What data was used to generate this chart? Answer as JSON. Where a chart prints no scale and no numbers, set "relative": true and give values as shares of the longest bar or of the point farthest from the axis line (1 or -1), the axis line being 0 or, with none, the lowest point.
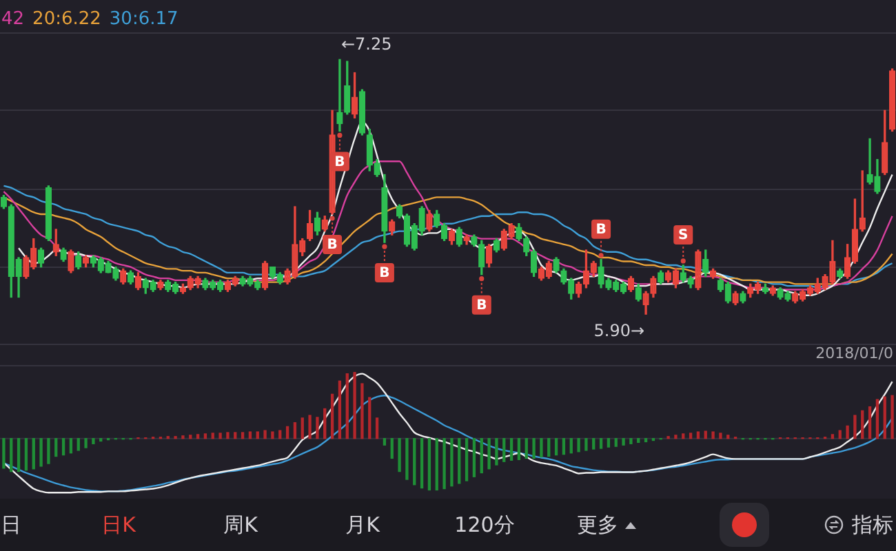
{
  "chart_data": [
    {
      "type": "candlestick",
      "categories": [
        null,
        null,
        null,
        null,
        null,
        null,
        null,
        null,
        null,
        null,
        null,
        null,
        null,
        null,
        null,
        null,
        null,
        null,
        null,
        null,
        null,
        null,
        null,
        null,
        null,
        null,
        null,
        null,
        null,
        null,
        null,
        null,
        null,
        null,
        null,
        null,
        null,
        null,
        null,
        null,
        null,
        null,
        null,
        null,
        null,
        null,
        null,
        null,
        null,
        null,
        null,
        null,
        null,
        null,
        null,
        null,
        null,
        null,
        null,
        null,
        null,
        null,
        null,
        null,
        null,
        null,
        null,
        null,
        null,
        null,
        null,
        null,
        null,
        null,
        null,
        null,
        null,
        null,
        null,
        null,
        null,
        null,
        null,
        null,
        null,
        null,
        null,
        null,
        null,
        null,
        null,
        null,
        null,
        null,
        null,
        null,
        null,
        null,
        null,
        null,
        null,
        null,
        null,
        null,
        null,
        null,
        null,
        null,
        null,
        null,
        null,
        null,
        null,
        null,
        null,
        null,
        null,
        null,
        null,
        null
      ],
      "ohlc": [
        [
          6.52,
          6.53,
          6.46,
          6.47
        ],
        [
          6.47,
          6.48,
          5.99,
          6.1
        ],
        [
          6.19,
          6.2,
          5.99,
          6.1
        ],
        [
          6.1,
          6.21,
          6.09,
          6.2
        ],
        [
          6.15,
          6.3,
          6.14,
          6.25
        ],
        [
          6.24,
          6.25,
          6.15,
          6.17
        ],
        [
          6.57,
          6.58,
          6.29,
          6.3
        ],
        [
          6.23,
          6.35,
          6.21,
          6.27
        ],
        [
          6.24,
          6.25,
          6.18,
          6.19
        ],
        [
          6.13,
          6.24,
          6.12,
          6.23
        ],
        [
          6.21,
          6.23,
          6.14,
          6.15
        ],
        [
          6.17,
          6.21,
          6.15,
          6.2
        ],
        [
          6.2,
          6.21,
          6.15,
          6.17
        ],
        [
          6.19,
          6.2,
          6.12,
          6.13
        ],
        [
          6.17,
          6.18,
          6.12,
          6.12
        ],
        [
          6.14,
          6.15,
          6.08,
          6.09
        ],
        [
          6.07,
          6.14,
          6.06,
          6.13
        ],
        [
          6.12,
          6.13,
          6.06,
          6.07
        ],
        [
          6.04,
          6.12,
          6.03,
          6.1
        ],
        [
          6.08,
          6.09,
          6.01,
          6.04
        ],
        [
          6.07,
          6.08,
          6.02,
          6.03
        ],
        [
          6.04,
          6.08,
          6.03,
          6.07
        ],
        [
          6.07,
          6.08,
          6.02,
          6.03
        ],
        [
          6.06,
          6.07,
          6.01,
          6.02
        ],
        [
          6.02,
          6.06,
          6.01,
          6.04
        ],
        [
          6.04,
          6.1,
          6.03,
          6.09
        ],
        [
          6.06,
          6.1,
          6.04,
          6.09
        ],
        [
          6.08,
          6.09,
          6.03,
          6.04
        ],
        [
          6.07,
          6.08,
          6.03,
          6.04
        ],
        [
          6.07,
          6.08,
          6.02,
          6.03
        ],
        [
          6.03,
          6.08,
          6.02,
          6.07
        ],
        [
          6.06,
          6.1,
          6.05,
          6.09
        ],
        [
          6.09,
          6.1,
          6.05,
          6.06
        ],
        [
          6.09,
          6.1,
          6.05,
          6.06
        ],
        [
          6.07,
          6.08,
          6.03,
          6.04
        ],
        [
          6.04,
          6.18,
          6.03,
          6.17
        ],
        [
          6.15,
          6.15,
          6.09,
          6.1
        ],
        [
          6.11,
          6.12,
          6.06,
          6.07
        ],
        [
          6.07,
          6.14,
          6.06,
          6.13
        ],
        [
          6.1,
          6.47,
          6.09,
          6.27
        ],
        [
          6.23,
          6.3,
          6.21,
          6.29
        ],
        [
          6.3,
          6.45,
          6.29,
          6.38
        ],
        [
          6.41,
          6.44,
          6.32,
          6.34
        ],
        [
          6.35,
          6.42,
          6.34,
          6.4
        ],
        [
          6.44,
          6.98,
          6.43,
          6.85
        ],
        [
          6.97,
          7.25,
          6.87,
          6.91
        ],
        [
          7.11,
          7.24,
          6.96,
          6.97
        ],
        [
          6.96,
          7.18,
          6.94,
          7.05
        ],
        [
          7.08,
          7.09,
          6.85,
          6.86
        ],
        [
          6.85,
          6.88,
          6.66,
          6.69
        ],
        [
          6.7,
          6.72,
          6.63,
          6.64
        ],
        [
          6.57,
          6.64,
          6.28,
          6.34
        ],
        [
          6.34,
          6.4,
          6.32,
          6.39
        ],
        [
          6.47,
          6.48,
          6.41,
          6.42
        ],
        [
          6.42,
          6.43,
          6.26,
          6.27
        ],
        [
          6.37,
          6.38,
          6.24,
          6.25
        ],
        [
          6.46,
          6.47,
          6.32,
          6.34
        ],
        [
          6.35,
          6.45,
          6.34,
          6.43
        ],
        [
          6.43,
          6.45,
          6.36,
          6.37
        ],
        [
          6.37,
          6.38,
          6.29,
          6.3
        ],
        [
          6.29,
          6.35,
          6.27,
          6.34
        ],
        [
          6.35,
          6.36,
          6.26,
          6.27
        ],
        [
          6.29,
          6.32,
          6.27,
          6.31
        ],
        [
          6.31,
          6.32,
          6.26,
          6.27
        ],
        [
          6.27,
          6.29,
          6.11,
          6.15
        ],
        [
          6.17,
          6.27,
          6.15,
          6.26
        ],
        [
          6.29,
          6.3,
          6.23,
          6.24
        ],
        [
          6.25,
          6.35,
          6.24,
          6.34
        ],
        [
          6.31,
          6.38,
          6.3,
          6.37
        ],
        [
          6.36,
          6.38,
          6.29,
          6.3
        ],
        [
          6.3,
          6.31,
          6.21,
          6.23
        ],
        [
          6.23,
          6.24,
          6.1,
          6.12
        ],
        [
          6.09,
          6.15,
          6.08,
          6.14
        ],
        [
          6.1,
          6.18,
          6.09,
          6.17
        ],
        [
          6.19,
          6.2,
          6.12,
          6.13
        ],
        [
          6.13,
          6.14,
          6.06,
          6.07
        ],
        [
          6.08,
          6.09,
          5.98,
          6.01
        ],
        [
          6.01,
          6.07,
          5.99,
          6.06
        ],
        [
          6.06,
          6.24,
          6.04,
          6.13
        ],
        [
          6.12,
          6.18,
          6.1,
          6.17
        ],
        [
          6.15,
          6.19,
          6.04,
          6.06
        ],
        [
          6.08,
          6.09,
          6.03,
          6.04
        ],
        [
          6.07,
          6.08,
          6.02,
          6.03
        ],
        [
          6.06,
          6.07,
          6.01,
          6.02
        ],
        [
          6.03,
          6.1,
          6.02,
          6.09
        ],
        [
          6.04,
          6.06,
          5.97,
          5.98
        ],
        [
          5.95,
          6.02,
          5.9,
          6.01
        ],
        [
          6.01,
          6.1,
          5.99,
          6.09
        ],
        [
          6.12,
          6.13,
          6.06,
          6.07
        ],
        [
          6.08,
          6.13,
          6.07,
          6.12
        ],
        [
          6.06,
          6.14,
          6.04,
          6.13
        ],
        [
          6.12,
          6.16,
          6.07,
          6.08
        ],
        [
          6.09,
          6.1,
          6.04,
          6.06
        ],
        [
          6.04,
          6.24,
          6.03,
          6.23
        ],
        [
          6.19,
          6.24,
          6.1,
          6.12
        ],
        [
          6.1,
          6.14,
          6.09,
          6.13
        ],
        [
          6.08,
          6.09,
          6.02,
          6.03
        ],
        [
          6.06,
          6.07,
          5.96,
          5.97
        ],
        [
          5.96,
          6.02,
          5.95,
          6.01
        ],
        [
          6.01,
          6.02,
          5.96,
          5.97
        ],
        [
          6.01,
          6.06,
          5.99,
          6.04
        ],
        [
          6.03,
          6.07,
          6.01,
          6.06
        ],
        [
          6.04,
          6.06,
          6.01,
          6.02
        ],
        [
          6.01,
          6.05,
          6.0,
          6.04
        ],
        [
          6.03,
          6.04,
          5.98,
          5.99
        ],
        [
          6.01,
          6.02,
          5.97,
          5.98
        ],
        [
          5.97,
          6.02,
          5.96,
          6.01
        ],
        [
          5.98,
          6.03,
          5.97,
          6.02
        ],
        [
          6.01,
          6.05,
          6.0,
          6.04
        ],
        [
          6.02,
          6.09,
          6.01,
          6.06
        ],
        [
          6.04,
          6.11,
          6.03,
          6.1
        ],
        [
          6.07,
          6.29,
          6.06,
          6.18
        ],
        [
          6.13,
          6.14,
          6.09,
          6.1
        ],
        [
          6.1,
          6.27,
          6.09,
          6.2
        ],
        [
          6.18,
          6.51,
          6.17,
          6.35
        ],
        [
          6.35,
          6.66,
          6.34,
          6.41
        ],
        [
          6.64,
          6.83,
          6.59,
          6.6
        ],
        [
          6.63,
          6.72,
          6.54,
          6.55
        ],
        [
          6.65,
          6.98,
          6.64,
          6.81
        ],
        [
          6.88,
          7.2,
          6.87,
          7.19
        ]
      ],
      "colors": [
        "#2fbe52",
        "#2fbe52",
        "#2fbe52",
        "#e8463d",
        "#e8463d",
        "#2fbe52",
        "#2fbe52",
        "#e8463d",
        "#2fbe52",
        "#e8463d",
        "#2fbe52",
        "#e8463d",
        "#2fbe52",
        "#2fbe52",
        "#2fbe52",
        "#2fbe52",
        "#e8463d",
        "#2fbe52",
        "#e8463d",
        "#2fbe52",
        "#2fbe52",
        "#e8463d",
        "#2fbe52",
        "#2fbe52",
        "#e8463d",
        "#e8463d",
        "#e8463d",
        "#2fbe52",
        "#2fbe52",
        "#2fbe52",
        "#e8463d",
        "#e8463d",
        "#2fbe52",
        "#2fbe52",
        "#2fbe52",
        "#e8463d",
        "#2fbe52",
        "#2fbe52",
        "#e8463d",
        "#e8463d",
        "#e8463d",
        "#e8463d",
        "#2fbe52",
        "#e8463d",
        "#e8463d",
        "#2fbe52",
        "#2fbe52",
        "#e8463d",
        "#2fbe52",
        "#2fbe52",
        "#2fbe52",
        "#2fbe52",
        "#e8463d",
        "#2fbe52",
        "#2fbe52",
        "#2fbe52",
        "#2fbe52",
        "#e8463d",
        "#2fbe52",
        "#2fbe52",
        "#e8463d",
        "#2fbe52",
        "#e8463d",
        "#2fbe52",
        "#2fbe52",
        "#e8463d",
        "#2fbe52",
        "#e8463d",
        "#e8463d",
        "#2fbe52",
        "#2fbe52",
        "#2fbe52",
        "#e8463d",
        "#e8463d",
        "#2fbe52",
        "#2fbe52",
        "#2fbe52",
        "#e8463d",
        "#e8463d",
        "#e8463d",
        "#2fbe52",
        "#2fbe52",
        "#2fbe52",
        "#2fbe52",
        "#e8463d",
        "#2fbe52",
        "#e8463d",
        "#e8463d",
        "#2fbe52",
        "#e8463d",
        "#e8463d",
        "#2fbe52",
        "#2fbe52",
        "#e8463d",
        "#2fbe52",
        "#e8463d",
        "#2fbe52",
        "#2fbe52",
        "#e8463d",
        "#2fbe52",
        "#e8463d",
        "#e8463d",
        "#2fbe52",
        "#e8463d",
        "#2fbe52",
        "#2fbe52",
        "#e8463d",
        "#e8463d",
        "#e8463d",
        "#e8463d",
        "#e8463d",
        "#e8463d",
        "#2fbe52",
        "#e8463d",
        "#e8463d",
        "#e8463d",
        "#2fbe52",
        "#2fbe52",
        "#e8463d",
        "#e8463d"
      ],
      "series": [
        {
          "type": "line",
          "color": "#eeeeee",
          "values": [
            null,
            null,
            6.25,
            6.2,
            6.17,
            6.18,
            6.21,
            6.24,
            6.23,
            6.22,
            6.22,
            6.21,
            6.2,
            6.18,
            6.16,
            6.14,
            6.12,
            6.11,
            6.09,
            6.08,
            6.07,
            6.06,
            6.05,
            6.05,
            6.04,
            6.05,
            6.06,
            6.06,
            6.06,
            6.06,
            6.06,
            6.06,
            6.07,
            6.08,
            6.09,
            6.09,
            6.09,
            6.1,
            6.1,
            6.13,
            6.17,
            6.21,
            6.25,
            6.34,
            6.43,
            6.57,
            6.7,
            6.83,
            6.92,
            6.87,
            6.74,
            6.6,
            6.51,
            6.45,
            6.38,
            6.34,
            6.32,
            6.33,
            6.33,
            6.35,
            6.35,
            6.32,
            6.3,
            6.27,
            6.25,
            6.26,
            6.28,
            6.31,
            6.33,
            6.34,
            6.31,
            6.24,
            6.16,
            6.13,
            6.12,
            6.09,
            6.08,
            6.09,
            6.1,
            6.1,
            6.11,
            6.1,
            6.09,
            6.07,
            6.05,
            6.05,
            6.05,
            6.06,
            6.06,
            6.06,
            6.06,
            6.07,
            6.08,
            6.1,
            6.12,
            6.12,
            6.11,
            6.09,
            6.07,
            6.05,
            6.03,
            6.03,
            6.03,
            6.03,
            6.03,
            6.02,
            6.01,
            6.0,
            6.0,
            6.01,
            6.03,
            6.05,
            6.09,
            6.13,
            6.2,
            6.28,
            6.36,
            6.46,
            6.55,
            6.64
          ]
        },
        {
          "type": "line",
          "name": "42",
          "color": "#d9409f",
          "values": [
            6.55,
            6.51,
            6.46,
            6.41,
            6.36,
            6.32,
            6.3,
            6.26,
            6.23,
            6.22,
            6.21,
            6.21,
            6.21,
            6.2,
            6.19,
            6.17,
            6.16,
            6.15,
            6.13,
            6.11,
            6.1,
            6.09,
            6.09,
            6.08,
            6.08,
            6.08,
            6.08,
            6.07,
            6.07,
            6.07,
            6.07,
            6.08,
            6.08,
            6.08,
            6.08,
            6.08,
            6.08,
            6.09,
            6.1,
            6.12,
            6.15,
            6.18,
            6.2,
            6.26,
            6.31,
            6.42,
            6.53,
            6.6,
            6.66,
            6.69,
            6.71,
            6.71,
            6.71,
            6.71,
            6.65,
            6.58,
            6.52,
            6.44,
            6.4,
            6.37,
            6.35,
            6.34,
            6.32,
            6.31,
            6.3,
            6.3,
            6.3,
            6.3,
            6.3,
            6.28,
            6.25,
            6.23,
            6.21,
            6.19,
            6.18,
            6.16,
            6.15,
            6.13,
            6.12,
            6.11,
            6.11,
            6.1,
            6.09,
            6.08,
            6.07,
            6.06,
            6.06,
            6.06,
            6.06,
            6.06,
            6.07,
            6.08,
            6.09,
            6.1,
            6.1,
            6.1,
            6.09,
            6.07,
            6.06,
            6.05,
            6.04,
            6.04,
            6.04,
            6.03,
            6.03,
            6.03,
            6.03,
            6.03,
            6.03,
            6.03,
            6.04,
            6.05,
            6.06,
            6.07,
            6.1,
            6.14,
            6.18,
            6.24,
            6.33,
            6.42
          ]
        },
        {
          "type": "line",
          "name": "20:6.22",
          "color": "#e8a23a",
          "values": [
            6.52,
            6.5,
            6.48,
            6.46,
            6.44,
            6.43,
            6.43,
            6.42,
            6.41,
            6.4,
            6.38,
            6.35,
            6.33,
            6.31,
            6.28,
            6.25,
            6.23,
            6.21,
            6.19,
            6.17,
            6.16,
            6.15,
            6.14,
            6.14,
            6.13,
            6.13,
            6.12,
            6.12,
            6.11,
            6.1,
            6.09,
            6.09,
            6.08,
            6.08,
            6.07,
            6.07,
            6.07,
            6.07,
            6.08,
            6.1,
            6.12,
            6.13,
            6.15,
            6.18,
            6.22,
            6.26,
            6.3,
            6.34,
            6.37,
            6.4,
            6.43,
            6.44,
            6.46,
            6.47,
            6.48,
            6.49,
            6.5,
            6.51,
            6.52,
            6.52,
            6.52,
            6.52,
            6.51,
            6.5,
            6.48,
            6.45,
            6.42,
            6.39,
            6.37,
            6.35,
            6.33,
            6.32,
            6.3,
            6.29,
            6.28,
            6.27,
            6.26,
            6.24,
            6.23,
            6.22,
            6.2,
            6.2,
            6.19,
            6.18,
            6.18,
            6.17,
            6.16,
            6.16,
            6.15,
            6.15,
            6.14,
            6.14,
            6.13,
            6.12,
            6.12,
            6.11,
            6.1,
            6.09,
            6.09,
            6.08,
            6.08,
            6.08,
            6.07,
            6.07,
            6.07,
            6.07,
            6.06,
            6.06,
            6.06,
            6.06,
            6.06,
            6.06,
            6.06,
            6.07,
            6.07,
            6.08,
            6.1,
            6.13,
            6.17,
            6.22
          ]
        },
        {
          "type": "line",
          "name": "30:6.17",
          "color": "#3fa0d8",
          "values": [
            6.58,
            6.57,
            6.55,
            6.53,
            6.52,
            6.5,
            6.49,
            6.48,
            6.46,
            6.45,
            6.44,
            6.43,
            6.41,
            6.4,
            6.38,
            6.37,
            6.36,
            6.35,
            6.34,
            6.32,
            6.31,
            6.28,
            6.26,
            6.25,
            6.23,
            6.22,
            6.2,
            6.18,
            6.16,
            6.14,
            6.12,
            6.12,
            6.12,
            6.11,
            6.11,
            6.11,
            6.11,
            6.11,
            6.1,
            6.1,
            6.1,
            6.11,
            6.12,
            6.13,
            6.16,
            6.19,
            6.22,
            6.25,
            6.28,
            6.29,
            6.31,
            6.32,
            6.33,
            6.34,
            6.34,
            6.35,
            6.35,
            6.36,
            6.37,
            6.38,
            6.38,
            6.39,
            6.4,
            6.41,
            6.42,
            6.42,
            6.43,
            6.43,
            6.43,
            6.44,
            6.44,
            6.43,
            6.43,
            6.42,
            6.4,
            6.37,
            6.35,
            6.32,
            6.3,
            6.26,
            6.24,
            6.23,
            6.23,
            6.22,
            6.2,
            6.19,
            6.19,
            6.18,
            6.17,
            6.16,
            6.16,
            6.15,
            6.15,
            6.14,
            6.13,
            6.12,
            6.11,
            6.1,
            6.09,
            6.08,
            6.08,
            6.07,
            6.07,
            6.06,
            6.06,
            6.05,
            6.05,
            6.05,
            6.05,
            6.04,
            6.05,
            6.05,
            6.06,
            6.06,
            6.08,
            6.09,
            6.1,
            6.12,
            6.15,
            6.17
          ]
        }
      ],
      "ylim": [
        5.74,
        7.39
      ],
      "yticks": [
        {
          "value": 7.39,
          "label": null
        },
        {
          "value": 6.98,
          "label": null
        },
        {
          "value": 6.56,
          "label": null
        },
        {
          "value": 6.15,
          "label": null
        },
        {
          "value": 5.74,
          "label": null
        }
      ],
      "grid": "y",
      "legend": "top left",
      "tick_labels": false,
      "annotations": [
        "←7.25",
        "5.90→",
        {
          "text": "B",
          "y": 6.43
        },
        {
          "text": "B",
          "y": 6.87
        },
        {
          "text": "B",
          "y": 6.28
        },
        {
          "text": "B",
          "y": 6.11
        },
        {
          "text": "B",
          "y": 6.19
        },
        {
          "text": "S",
          "y": 6.16
        },
        "2018/01/0"
      ]
    },
    {
      "type": "bar",
      "relative": true,
      "categories": [
        null,
        null,
        null,
        null,
        null,
        null,
        null,
        null,
        null,
        null,
        null,
        null,
        null,
        null,
        null,
        null,
        null,
        null,
        null,
        null,
        null,
        null,
        null,
        null,
        null,
        null,
        null,
        null,
        null,
        null,
        null,
        null,
        null,
        null,
        null,
        null,
        null,
        null,
        null,
        null,
        null,
        null,
        null,
        null,
        null,
        null,
        null,
        null,
        null,
        null,
        null,
        null,
        null,
        null,
        null,
        null,
        null,
        null,
        null,
        null,
        null,
        null,
        null,
        null,
        null,
        null,
        null,
        null,
        null,
        null,
        null,
        null,
        null,
        null,
        null,
        null,
        null,
        null,
        null,
        null,
        null,
        null,
        null,
        null,
        null,
        null,
        null,
        null,
        null,
        null,
        null,
        null,
        null,
        null,
        null,
        null,
        null,
        null,
        null,
        null,
        null,
        null,
        null,
        null,
        null,
        null,
        null,
        null,
        null,
        null,
        null,
        null,
        null,
        null,
        null,
        null,
        null,
        null,
        null,
        null
      ],
      "tick_labels": false,
      "series": [
        {
          "type": "bar",
          "values": [
            -0.45,
            -0.5,
            -0.5,
            -0.48,
            -0.46,
            -0.42,
            -0.38,
            -0.27,
            -0.25,
            -0.22,
            -0.18,
            -0.14,
            -0.08,
            -0.04,
            -0.02,
            -0.01,
            -0.01,
            -0.01,
            0.01,
            0.01,
            0.02,
            0.02,
            0.03,
            0.03,
            0.04,
            0.05,
            0.06,
            0.07,
            0.08,
            0.08,
            0.09,
            0.09,
            0.09,
            0.1,
            0.1,
            0.12,
            0.1,
            0.12,
            0.18,
            0.24,
            0.31,
            0.35,
            0.32,
            0.45,
            0.67,
            0.87,
            0.98,
            1,
            0.83,
            0.62,
            0.31,
            -0.1,
            -0.3,
            -0.5,
            -0.62,
            -0.7,
            -0.75,
            -0.78,
            -0.78,
            -0.76,
            -0.72,
            -0.68,
            -0.64,
            -0.58,
            -0.52,
            -0.46,
            -0.4,
            -0.35,
            -0.33,
            -0.32,
            -0.3,
            -0.3,
            -0.28,
            -0.27,
            -0.25,
            -0.24,
            -0.22,
            -0.2,
            -0.18,
            -0.16,
            -0.15,
            -0.13,
            -0.12,
            -0.1,
            -0.08,
            -0.06,
            -0.05,
            -0.03,
            -0.01,
            0.03,
            0.05,
            0.07,
            0.08,
            0.1,
            0.11,
            0.1,
            0.08,
            0.05,
            0.02,
            -0.01,
            -0.01,
            -0.01,
            -0.01,
            -0.01,
            0.01,
            0.01,
            0.01,
            0.01,
            0.01,
            0.01,
            0.02,
            0.06,
            0.12,
            0.19,
            0.35,
            0.42,
            0.48,
            0.59,
            0.63,
            0.65
          ],
          "colors": [
            "#1f8f36",
            "#1f8f36",
            "#1f8f36",
            "#1f8f36",
            "#1f8f36",
            "#1f8f36",
            "#1f8f36",
            "#1f8f36",
            "#1f8f36",
            "#1f8f36",
            "#1f8f36",
            "#1f8f36",
            "#1f8f36",
            "#1f8f36",
            "#1f8f36",
            "#1f8f36",
            "#1f8f36",
            "#1f8f36",
            "#b4262b",
            "#b4262b",
            "#b4262b",
            "#b4262b",
            "#b4262b",
            "#b4262b",
            "#b4262b",
            "#b4262b",
            "#b4262b",
            "#b4262b",
            "#b4262b",
            "#b4262b",
            "#b4262b",
            "#b4262b",
            "#b4262b",
            "#b4262b",
            "#b4262b",
            "#b4262b",
            "#b4262b",
            "#b4262b",
            "#b4262b",
            "#b4262b",
            "#b4262b",
            "#b4262b",
            "#b4262b",
            "#b4262b",
            "#b4262b",
            "#b4262b",
            "#b4262b",
            "#b4262b",
            "#b4262b",
            "#b4262b",
            "#b4262b",
            "#1f8f36",
            "#1f8f36",
            "#1f8f36",
            "#1f8f36",
            "#1f8f36",
            "#1f8f36",
            "#1f8f36",
            "#1f8f36",
            "#1f8f36",
            "#1f8f36",
            "#1f8f36",
            "#1f8f36",
            "#1f8f36",
            "#1f8f36",
            "#1f8f36",
            "#1f8f36",
            "#1f8f36",
            "#1f8f36",
            "#1f8f36",
            "#1f8f36",
            "#1f8f36",
            "#1f8f36",
            "#1f8f36",
            "#1f8f36",
            "#1f8f36",
            "#1f8f36",
            "#1f8f36",
            "#1f8f36",
            "#1f8f36",
            "#1f8f36",
            "#1f8f36",
            "#1f8f36",
            "#1f8f36",
            "#1f8f36",
            "#1f8f36",
            "#1f8f36",
            "#1f8f36",
            "#1f8f36",
            "#b4262b",
            "#b4262b",
            "#b4262b",
            "#b4262b",
            "#b4262b",
            "#b4262b",
            "#b4262b",
            "#b4262b",
            "#b4262b",
            "#b4262b",
            "#1f8f36",
            "#1f8f36",
            "#1f8f36",
            "#1f8f36",
            "#1f8f36",
            "#b4262b",
            "#b4262b",
            "#b4262b",
            "#b4262b",
            "#b4262b",
            "#b4262b",
            "#b4262b",
            "#b4262b",
            "#b4262b",
            "#b4262b",
            "#b4262b",
            "#b4262b",
            "#b4262b",
            "#b4262b",
            "#b4262b",
            "#b4262b"
          ]
        },
        {
          "type": "line",
          "color": "#ececec",
          "values": [
            -0.37,
            -0.47,
            -0.57,
            -0.67,
            -0.76,
            -0.8,
            -0.82,
            -0.82,
            -0.82,
            -0.82,
            -0.81,
            -0.81,
            -0.81,
            -0.81,
            -0.8,
            -0.8,
            -0.8,
            -0.79,
            -0.78,
            -0.77,
            -0.76,
            -0.74,
            -0.71,
            -0.67,
            -0.63,
            -0.6,
            -0.57,
            -0.55,
            -0.53,
            -0.51,
            -0.49,
            -0.47,
            -0.45,
            -0.43,
            -0.41,
            -0.38,
            -0.35,
            -0.32,
            -0.29,
            -0.16,
            -0.02,
            0.05,
            0.12,
            0.3,
            0.47,
            0.65,
            0.83,
            0.94,
            0.98,
            0.92,
            0.84,
            0.7,
            0.54,
            0.38,
            0.24,
            0.09,
            0.04,
            0.01,
            -0.02,
            -0.05,
            -0.09,
            -0.13,
            -0.17,
            -0.2,
            -0.24,
            -0.27,
            -0.31,
            -0.28,
            -0.25,
            -0.22,
            -0.28,
            -0.34,
            -0.37,
            -0.39,
            -0.41,
            -0.45,
            -0.49,
            -0.53,
            -0.52,
            -0.52,
            -0.51,
            -0.51,
            -0.51,
            -0.51,
            -0.51,
            -0.5,
            -0.49,
            -0.47,
            -0.45,
            -0.43,
            -0.41,
            -0.39,
            -0.36,
            -0.32,
            -0.28,
            -0.24,
            -0.27,
            -0.3,
            -0.31,
            -0.31,
            -0.31,
            -0.31,
            -0.31,
            -0.31,
            -0.31,
            -0.31,
            -0.31,
            -0.31,
            -0.28,
            -0.25,
            -0.21,
            -0.17,
            -0.13,
            -0.05,
            0.03,
            0.14,
            0.3,
            0.5,
            0.67,
            0.86
          ]
        },
        {
          "type": "line",
          "color": "#3d9bd6",
          "values": [
            -0.37,
            -0.42,
            -0.47,
            -0.52,
            -0.56,
            -0.6,
            -0.64,
            -0.68,
            -0.71,
            -0.74,
            -0.76,
            -0.78,
            -0.79,
            -0.8,
            -0.8,
            -0.8,
            -0.79,
            -0.78,
            -0.76,
            -0.74,
            -0.72,
            -0.7,
            -0.67,
            -0.65,
            -0.62,
            -0.6,
            -0.58,
            -0.56,
            -0.54,
            -0.52,
            -0.5,
            -0.49,
            -0.47,
            -0.45,
            -0.43,
            -0.41,
            -0.39,
            -0.37,
            -0.33,
            -0.28,
            -0.23,
            -0.18,
            -0.13,
            -0.05,
            0.04,
            0.13,
            0.23,
            0.36,
            0.5,
            0.58,
            0.63,
            0.65,
            0.62,
            0.57,
            0.51,
            0.45,
            0.39,
            0.33,
            0.27,
            0.2,
            0.15,
            0.1,
            0.04,
            -0.01,
            -0.06,
            -0.11,
            -0.15,
            -0.18,
            -0.2,
            -0.22,
            -0.24,
            -0.27,
            -0.29,
            -0.31,
            -0.34,
            -0.38,
            -0.42,
            -0.44,
            -0.46,
            -0.48,
            -0.49,
            -0.5,
            -0.5,
            -0.51,
            -0.51,
            -0.5,
            -0.49,
            -0.48,
            -0.46,
            -0.44,
            -0.43,
            -0.41,
            -0.39,
            -0.37,
            -0.35,
            -0.33,
            -0.32,
            -0.32,
            -0.31,
            -0.31,
            -0.31,
            -0.31,
            -0.31,
            -0.31,
            -0.31,
            -0.31,
            -0.31,
            -0.31,
            -0.28,
            -0.26,
            -0.24,
            -0.22,
            -0.2,
            -0.17,
            -0.14,
            -0.1,
            -0.05,
            0.02,
            0.14,
            0.31
          ]
        }
      ]
    },
    {
      "type": "other",
      "annotations": [
        "日",
        "日K",
        "周K",
        "月K",
        "120分",
        "更多",
        "指标"
      ]
    }
  ]
}
